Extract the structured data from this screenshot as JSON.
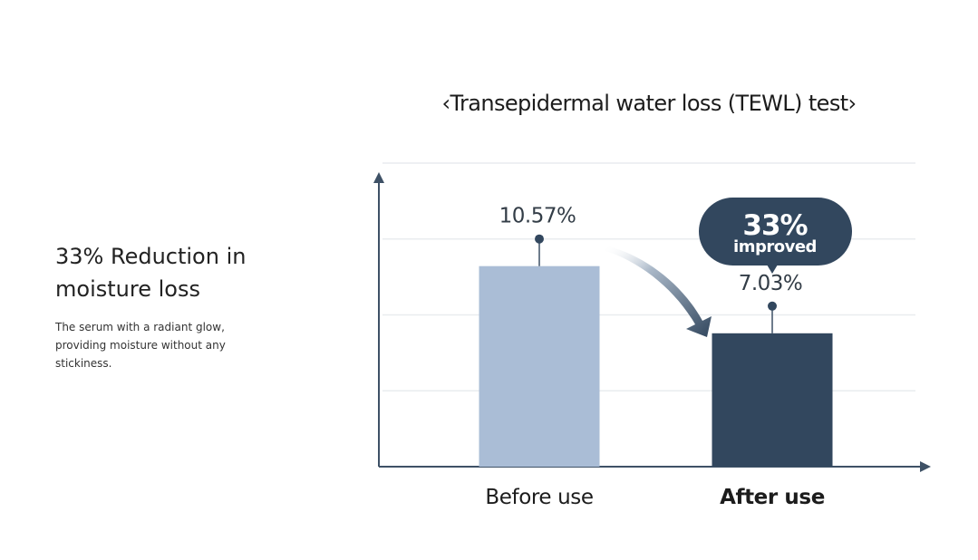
{
  "intro": {
    "heading": "33% Reduction in\nmoisture loss",
    "body": "The serum with a radiant glow, providing moisture without any stickiness."
  },
  "chart_data": {
    "type": "bar",
    "title": "‹Transepidermal water loss (TEWL) test›",
    "categories": [
      "Before use",
      "After use"
    ],
    "values": [
      10.57,
      7.03
    ],
    "value_labels": [
      "10.57%",
      "7.03%"
    ],
    "ylim": [
      0,
      16
    ],
    "grid": true,
    "callout": {
      "big": "33%",
      "small": "improved"
    },
    "colors": {
      "before": "#aabdd6",
      "after": "#32475e",
      "axis": "#3e5166",
      "grid": "#e9ecef",
      "text": "#333d47"
    }
  }
}
